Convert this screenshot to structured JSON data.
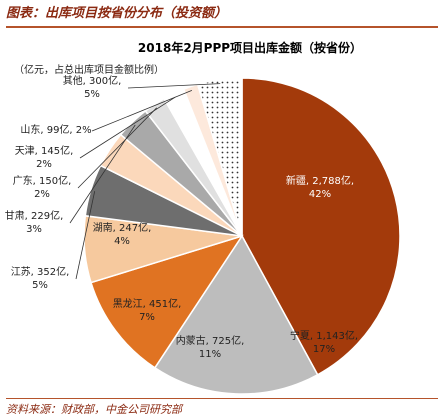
{
  "figure_caption": "图表：出库项目按省份分布（投资额）",
  "source_note": "资料来源：财政部，中金公司研究部",
  "chart_data": {
    "type": "pie",
    "title": "2018年2月PPP项目出库金额（按省份）",
    "subtitle": "（亿元，占总出库项目金额比例）",
    "slices": [
      {
        "name": "新疆",
        "value": 2788,
        "value_label": "2,788亿",
        "percent": "42%",
        "color": "#a33a0b",
        "text_color": "#ffffff",
        "pattern": ""
      },
      {
        "name": "宁夏",
        "value": 1143,
        "value_label": "1,143亿",
        "percent": "17%",
        "color": "#bdbdbd",
        "text_color": "#222222",
        "pattern": ""
      },
      {
        "name": "内蒙古",
        "value": 725,
        "value_label": "725亿",
        "percent": "11%",
        "color": "#e07322",
        "text_color": "#222222",
        "pattern": ""
      },
      {
        "name": "黑龙江",
        "value": 451,
        "value_label": "451亿",
        "percent": "7%",
        "color": "#f6c99e",
        "text_color": "#222222",
        "pattern": ""
      },
      {
        "name": "江苏",
        "value": 352,
        "value_label": "352亿",
        "percent": "5%",
        "color": "#6e6e6e",
        "text_color": "#222222",
        "pattern": ""
      },
      {
        "name": "湖南",
        "value": 247,
        "value_label": "247亿",
        "percent": "4%",
        "color": "#fbd8bb",
        "text_color": "#222222",
        "pattern": ""
      },
      {
        "name": "甘肃",
        "value": 229,
        "value_label": "229亿",
        "percent": "3%",
        "color": "#a9a9a9",
        "text_color": "#222222",
        "pattern": ""
      },
      {
        "name": "广东",
        "value": 150,
        "value_label": "150亿",
        "percent": "2%",
        "color": "#e0e0e0",
        "text_color": "#222222",
        "pattern": ""
      },
      {
        "name": "天津",
        "value": 145,
        "value_label": "145亿",
        "percent": "2%",
        "color": "#ffffff",
        "text_color": "#222222",
        "pattern": ""
      },
      {
        "name": "山东",
        "value": 99,
        "value_label": "99亿",
        "percent": "2%",
        "color": "#fde9dc",
        "text_color": "#222222",
        "pattern": ""
      },
      {
        "name": "其他",
        "value": 300,
        "value_label": "300亿",
        "percent": "5%",
        "color": "#ffffff",
        "text_color": "#222222",
        "pattern": "dots"
      }
    ]
  }
}
